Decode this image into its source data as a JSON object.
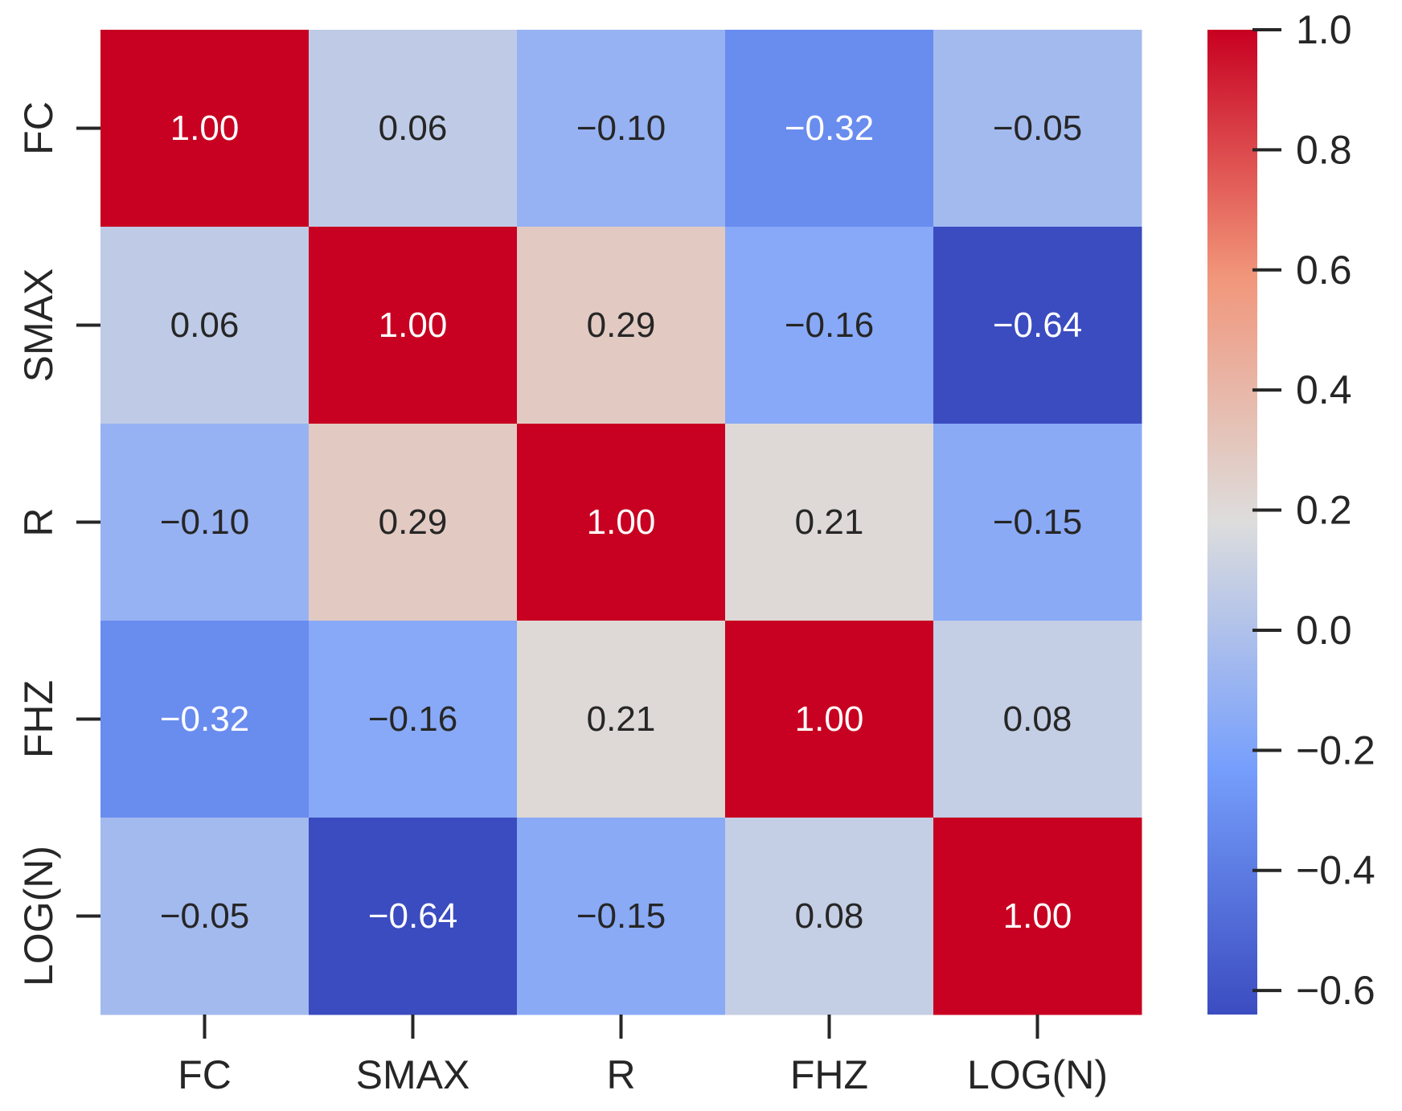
{
  "chart_data": {
    "type": "heatmap",
    "title": "",
    "xlabel": "",
    "ylabel": "",
    "x_categories": [
      "FC",
      "SMAX",
      "R",
      "FHZ",
      "LOG(N)"
    ],
    "y_categories": [
      "FC",
      "SMAX",
      "R",
      "FHZ",
      "LOG(N)"
    ],
    "values": [
      [
        1.0,
        0.06,
        -0.1,
        -0.32,
        -0.05
      ],
      [
        0.06,
        1.0,
        0.29,
        -0.16,
        -0.64
      ],
      [
        -0.1,
        0.29,
        1.0,
        0.21,
        -0.15
      ],
      [
        -0.32,
        -0.16,
        0.21,
        1.0,
        0.08
      ],
      [
        -0.05,
        -0.64,
        -0.15,
        0.08,
        1.0
      ]
    ],
    "value_labels": [
      [
        "1.00",
        "0.06",
        "−0.10",
        "−0.32",
        "−0.05"
      ],
      [
        "0.06",
        "1.00",
        "0.29",
        "−0.16",
        "−0.64"
      ],
      [
        "−0.10",
        "0.29",
        "1.00",
        "0.21",
        "−0.15"
      ],
      [
        "−0.32",
        "−0.16",
        "0.21",
        "1.00",
        "0.08"
      ],
      [
        "−0.05",
        "−0.64",
        "−0.15",
        "0.08",
        "1.00"
      ]
    ],
    "colormap": "coolwarm",
    "color_range": [
      -0.64,
      1.0
    ],
    "colorbar": {
      "ticks": [
        1.0,
        0.8,
        0.6,
        0.4,
        0.2,
        0.0,
        -0.2,
        -0.4,
        -0.6
      ],
      "tick_labels": [
        "1.0",
        "0.8",
        "0.6",
        "0.4",
        "0.2",
        "0.0",
        "−0.2",
        "−0.4",
        "−0.6"
      ],
      "placement": "right"
    },
    "colors": {
      "low": "#3b4cc0",
      "mid": "#dddddd",
      "high": "#c80021",
      "text_dark": "#262626",
      "text_light": "#ffffff"
    }
  }
}
